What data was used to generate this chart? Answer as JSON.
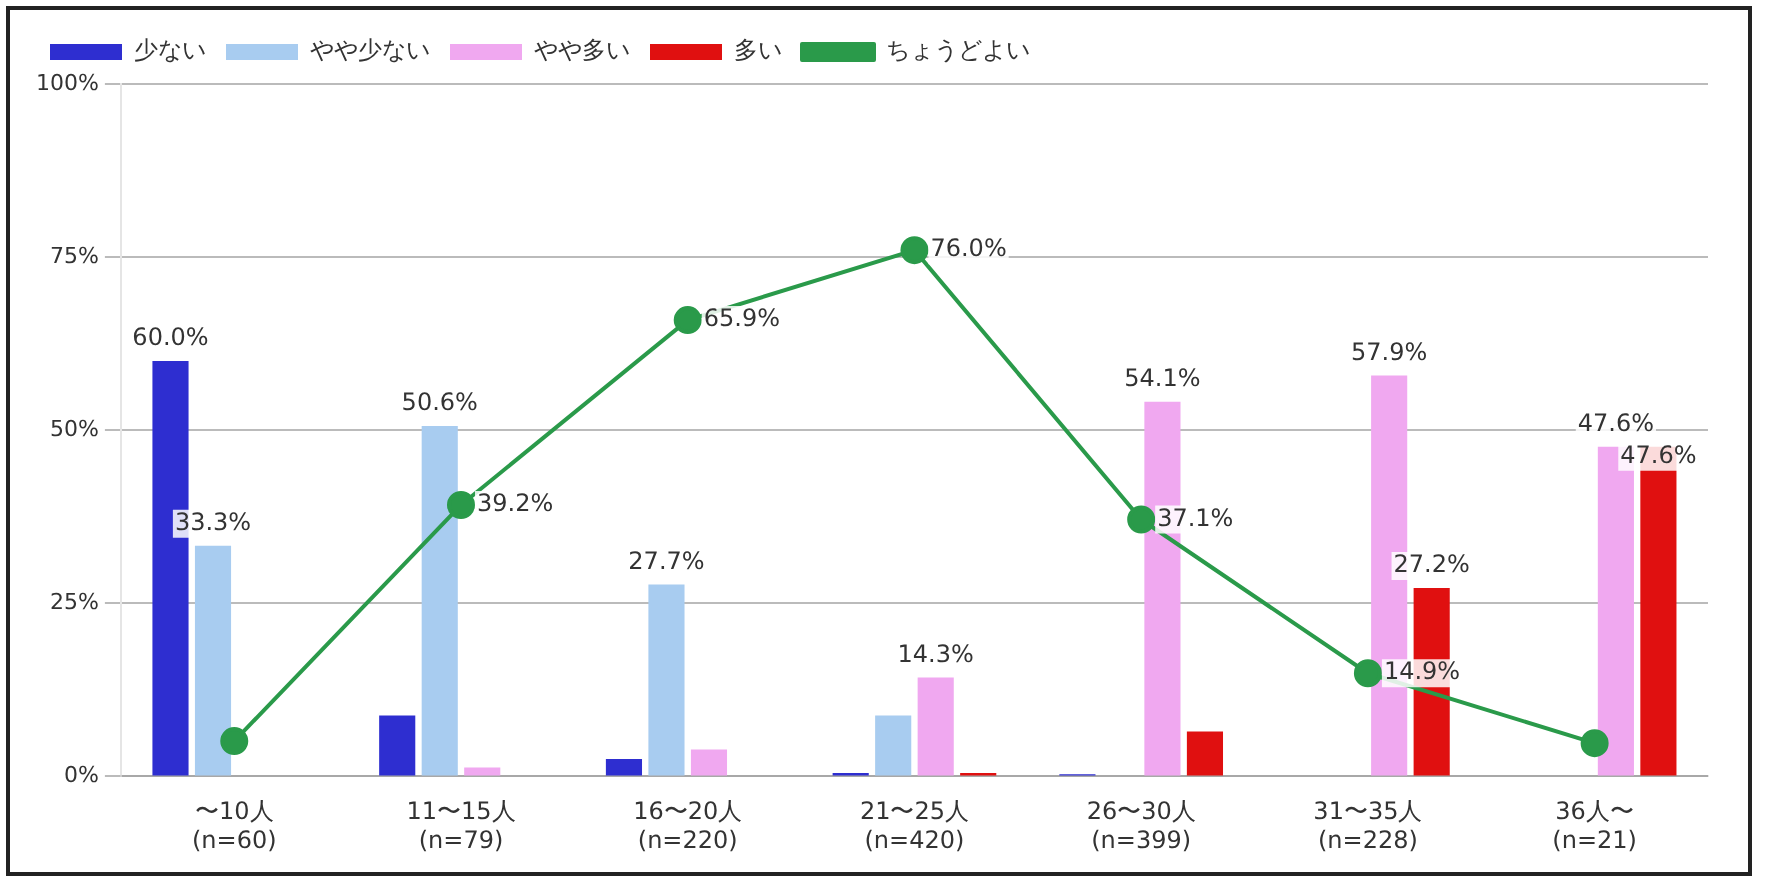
{
  "chart_data": {
    "type": "bar",
    "categories": [
      "〜10人\n(n=60)",
      "11〜15人\n(n=79)",
      "16〜20人\n(n=220)",
      "21〜25人\n(n=420)",
      "26〜30人\n(n=399)",
      "31〜35人\n(n=228)",
      "36人〜\n(n=21)"
    ],
    "series": [
      {
        "name": "少ない",
        "color": "#2e2ed0",
        "values": [
          60.0,
          8.8,
          2.5,
          0.5,
          0.3,
          0,
          0
        ],
        "value_labels": [
          "60.0%",
          null,
          null,
          null,
          null,
          null,
          null
        ]
      },
      {
        "name": "やや少ない",
        "color": "#a8ccf0",
        "values": [
          33.3,
          50.6,
          27.7,
          8.8,
          null,
          0,
          0
        ],
        "value_labels": [
          "33.3%",
          "50.6%",
          "27.7%",
          null,
          null,
          null,
          null
        ]
      },
      {
        "name": "やや多い",
        "color": "#f0a8f0",
        "values": [
          0,
          1.3,
          3.9,
          14.3,
          54.1,
          57.9,
          47.6
        ],
        "value_labels": [
          null,
          null,
          null,
          "14.3%",
          "54.1%",
          "57.9%",
          "47.6%"
        ]
      },
      {
        "name": "多い",
        "color": "#e01010",
        "values": [
          0,
          0,
          0,
          0.5,
          6.5,
          27.2,
          47.6
        ],
        "value_labels": [
          null,
          null,
          null,
          null,
          null,
          "27.2%",
          "47.6%"
        ]
      },
      {
        "name": "ちょうどよい",
        "type": "line",
        "color": "#2a9a4a",
        "values": [
          5.1,
          39.2,
          65.9,
          76.0,
          37.1,
          14.9,
          4.8
        ],
        "value_labels": [
          null,
          "39.2%",
          "65.9%",
          "76.0%",
          "37.1%",
          "14.9%",
          null
        ]
      }
    ],
    "ylim": [
      0,
      100
    ],
    "yticks": [
      {
        "value": 0,
        "label": "0%"
      },
      {
        "value": 25,
        "label": "25%"
      },
      {
        "value": 50,
        "label": "50%"
      },
      {
        "value": 75,
        "label": "75%"
      },
      {
        "value": 100,
        "label": "100%"
      }
    ],
    "grid": "y",
    "legend": "top",
    "marker": "circle"
  }
}
